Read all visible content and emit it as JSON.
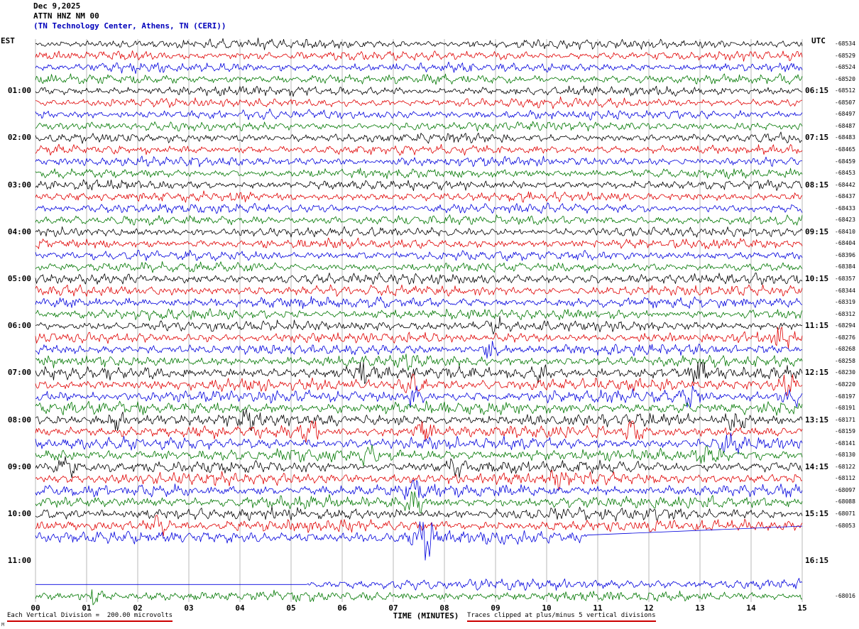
{
  "header": {
    "date": "Dec 9,2025",
    "station": "ATTN HNZ NM 00",
    "location": "(TN Technology Center, Athens, TN (CERI))"
  },
  "axes": {
    "left_label": "EST",
    "right_label": "UTC",
    "x_label": "TIME (MINUTES)",
    "x_ticks": [
      "00",
      "01",
      "02",
      "03",
      "04",
      "05",
      "06",
      "07",
      "08",
      "09",
      "10",
      "11",
      "12",
      "13",
      "14",
      "15"
    ],
    "left_times": [
      "01:00",
      "02:00",
      "03:00",
      "04:00",
      "05:00",
      "06:00",
      "07:00",
      "08:00",
      "09:00",
      "10:00",
      "11:00"
    ],
    "right_times": [
      "06:15",
      "07:15",
      "08:15",
      "09:15",
      "10:15",
      "11:15",
      "12:15",
      "13:15",
      "14:15",
      "15:15",
      "16:15"
    ]
  },
  "footer": {
    "scale_text": "Each Vertical Division =  200.00 microvolts",
    "clip_text": "Traces clipped at plus/minus 5 vertical divisions",
    "corner_mark": "M"
  },
  "chart_data": {
    "type": "line",
    "subtype": "helicorder-seismogram",
    "title": "ATTN HNZ NM 00",
    "date": "Dec 9,2025",
    "description": "(TN Technology Center, Athens, TN (CERI))",
    "xlabel": "TIME (MINUTES)",
    "x_range_minutes": [
      0,
      15
    ],
    "minutes_per_line": 15,
    "left_timezone": "EST",
    "right_timezone": "UTC",
    "microvolts_per_division": 200.0,
    "clip_divisions": 5,
    "grid": true,
    "trace_color_cycle": [
      "black",
      "red",
      "blue",
      "green"
    ],
    "colors": {
      "black": "#000000",
      "red": "#e00000",
      "blue": "#0000dd",
      "green": "#007700"
    },
    "base_amplitude": 4.8,
    "note": "Waveform is continuous background seismic noise; exact samples not recoverable from pixels, regenerated procedurally from seeded noise. Row labels/values below are as printed on the plot.",
    "rows": [
      {
        "color": "black",
        "right_value": "-68534"
      },
      {
        "color": "red",
        "right_value": "-68529"
      },
      {
        "color": "blue",
        "right_value": "-68524"
      },
      {
        "color": "green",
        "right_value": "-68520"
      },
      {
        "color": "black",
        "left_time": "01:00",
        "right_time": "06:15",
        "right_value": "-68512"
      },
      {
        "color": "red",
        "right_value": "-68507"
      },
      {
        "color": "blue",
        "right_value": "-68497"
      },
      {
        "color": "green",
        "right_value": "-68487"
      },
      {
        "color": "black",
        "left_time": "02:00",
        "right_time": "07:15",
        "right_value": "-68483"
      },
      {
        "color": "red",
        "right_value": "-68465"
      },
      {
        "color": "blue",
        "right_value": "-68459"
      },
      {
        "color": "green",
        "right_value": "-68453"
      },
      {
        "color": "black",
        "left_time": "03:00",
        "right_time": "08:15",
        "right_value": "-68442"
      },
      {
        "color": "red",
        "right_value": "-68437"
      },
      {
        "color": "blue",
        "right_value": "-68433"
      },
      {
        "color": "green",
        "right_value": "-68423"
      },
      {
        "color": "black",
        "left_time": "04:00",
        "right_time": "09:15",
        "right_value": "-68410"
      },
      {
        "color": "red",
        "right_value": "-68404"
      },
      {
        "color": "blue",
        "right_value": "-68396"
      },
      {
        "color": "green",
        "right_value": "-68384"
      },
      {
        "color": "black",
        "left_time": "05:00",
        "right_time": "10:15",
        "right_value": "-68357",
        "amp": 5.4
      },
      {
        "color": "red",
        "right_value": "-68344",
        "amp": 5.4
      },
      {
        "color": "blue",
        "right_value": "-68319",
        "amp": 5.4
      },
      {
        "color": "green",
        "right_value": "-68312",
        "amp": 5.4
      },
      {
        "color": "black",
        "left_time": "06:00",
        "right_time": "11:15",
        "right_value": "-68294",
        "amp": 5.4
      },
      {
        "color": "red",
        "right_value": "-68276",
        "amp": 5.4
      },
      {
        "color": "blue",
        "right_value": "-68268",
        "amp": 5.4
      },
      {
        "color": "green",
        "right_value": "-68258",
        "amp": 5.4
      },
      {
        "color": "black",
        "left_time": "07:00",
        "right_time": "12:15",
        "right_value": "-68230",
        "amp": 6.2
      },
      {
        "color": "red",
        "right_value": "-68220",
        "amp": 6.2
      },
      {
        "color": "blue",
        "right_value": "-68197",
        "amp": 6.2
      },
      {
        "color": "green",
        "right_value": "-68191",
        "amp": 6.2
      },
      {
        "color": "black",
        "left_time": "08:00",
        "right_time": "13:15",
        "right_value": "-68171",
        "amp": 6.2
      },
      {
        "color": "red",
        "right_value": "-68159",
        "amp": 6.2
      },
      {
        "color": "blue",
        "right_value": "-68141",
        "amp": 6.2
      },
      {
        "color": "green",
        "right_value": "-68130",
        "amp": 6.2
      },
      {
        "color": "black",
        "left_time": "09:00",
        "right_time": "14:15",
        "right_value": "-68122",
        "amp": 6.2
      },
      {
        "color": "red",
        "right_value": "-68112",
        "amp": 6.2
      },
      {
        "color": "blue",
        "right_value": "-68097",
        "amp": 6.2
      },
      {
        "color": "green",
        "right_value": "-68088",
        "amp": 6.2
      },
      {
        "color": "black",
        "left_time": "10:00",
        "right_time": "15:15",
        "right_value": "-68071",
        "amp": 6.2
      },
      {
        "color": "red",
        "right_value": "-68053",
        "amp": 6.2
      },
      {
        "color": "blue",
        "amp": 6.2,
        "clip": 32,
        "end_min": 10.8,
        "tail": "diagonal"
      },
      {
        "color": "green",
        "empty": true
      },
      {
        "color": "black",
        "left_time": "11:00",
        "right_time": "16:15",
        "empty": true
      },
      {
        "color": "red",
        "empty": true
      },
      {
        "color": "blue",
        "amp": 5.6,
        "start_flat": 5.3
      },
      {
        "color": "green",
        "amp": 5.2,
        "right_value": "-68016"
      }
    ],
    "events": [
      {
        "row": 24,
        "m": 9.0,
        "a": 1.4
      },
      {
        "row": 25,
        "m": 14.6,
        "a": 2.8
      },
      {
        "row": 26,
        "m": 8.9,
        "a": 2.0
      },
      {
        "row": 27,
        "m": 7.3,
        "a": 1.5
      },
      {
        "row": 28,
        "m": 6.4,
        "a": 2.0
      },
      {
        "row": 28,
        "m": 9.9,
        "a": 1.7
      },
      {
        "row": 28,
        "m": 13.0,
        "a": 2.2
      },
      {
        "row": 29,
        "m": 7.4,
        "a": 2.4
      },
      {
        "row": 29,
        "m": 14.7,
        "a": 2.2
      },
      {
        "row": 30,
        "m": 7.4,
        "a": 1.9
      },
      {
        "row": 30,
        "m": 12.8,
        "a": 1.7
      },
      {
        "row": 30,
        "m": 14.8,
        "a": 1.9
      },
      {
        "row": 32,
        "m": 1.6,
        "a": 1.7
      },
      {
        "row": 32,
        "m": 4.2,
        "a": 1.7
      },
      {
        "row": 32,
        "m": 13.7,
        "a": 1.9
      },
      {
        "row": 33,
        "m": 5.4,
        "a": 2.1
      },
      {
        "row": 33,
        "m": 7.6,
        "a": 1.9
      },
      {
        "row": 33,
        "m": 11.7,
        "a": 2.1
      },
      {
        "row": 34,
        "m": 13.6,
        "a": 2.5
      },
      {
        "row": 35,
        "m": 6.5,
        "a": 1.7
      },
      {
        "row": 35,
        "m": 13.2,
        "a": 1.7
      },
      {
        "row": 36,
        "m": 0.6,
        "a": 2.6
      },
      {
        "row": 36,
        "m": 8.2,
        "a": 2.1
      },
      {
        "row": 37,
        "m": 10.3,
        "a": 1.7
      },
      {
        "row": 38,
        "m": 7.4,
        "a": 1.9
      },
      {
        "row": 39,
        "m": 7.4,
        "a": 2.3
      },
      {
        "row": 41,
        "m": 2.4,
        "a": 1.9
      },
      {
        "row": 42,
        "m": 7.6,
        "a": 5.0
      },
      {
        "row": 47,
        "m": 1.1,
        "a": 1.6
      }
    ]
  }
}
